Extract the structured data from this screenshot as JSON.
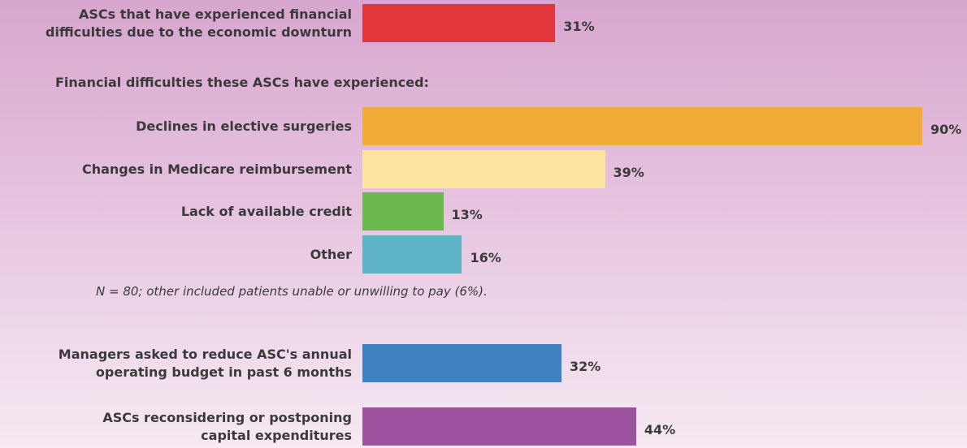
{
  "chart_data": {
    "type": "bar",
    "categories": [
      "ASCs that have experienced financial\ndifficulties due to the economic downturn",
      "Declines in elective surgeries",
      "Changes in Medicare reimbursement",
      "Lack of available credit",
      "Other",
      "Managers asked to reduce ASC's annual\noperating budget in past 6 months",
      "ASCs reconsidering or postponing\ncapital expenditures"
    ],
    "values": [
      31,
      90,
      39,
      13,
      16,
      32,
      44
    ],
    "value_labels": [
      "31%",
      "90%",
      "39%",
      "13%",
      "16%",
      "32%",
      "44%"
    ],
    "colors": [
      "#e2373a",
      "#f2aa38",
      "#fde3a0",
      "#6cb94d",
      "#5fb3c6",
      "#3f82c2",
      "#9d53a0"
    ],
    "subtitle": "Financial difficulties these ASCs have experienced:",
    "note": "N = 80; other included patients unable or unwilling to pay (6%)."
  }
}
